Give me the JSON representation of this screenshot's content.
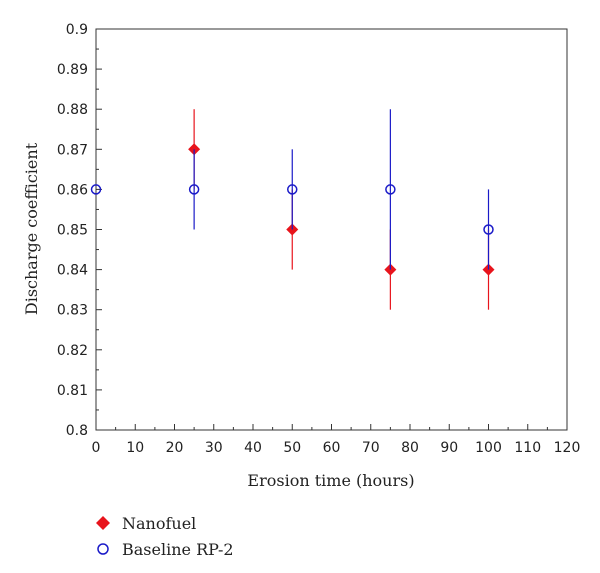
{
  "chart_data": {
    "type": "scatter",
    "xlabel": "Erosion time (hours)",
    "ylabel": "Discharge coefficient",
    "xlim": [
      0,
      120
    ],
    "ylim": [
      0.8,
      0.9
    ],
    "xticks": [
      "0",
      "10",
      "20",
      "30",
      "40",
      "50",
      "60",
      "70",
      "80",
      "90",
      "100",
      "110",
      "120"
    ],
    "yticks": [
      "0.8",
      "0.81",
      "0.82",
      "0.83",
      "0.84",
      "0.85",
      "0.86",
      "0.87",
      "0.88",
      "0.89",
      "0.9"
    ],
    "grid": false,
    "legend_position": "bottom-left",
    "series": [
      {
        "name": "Nanofuel",
        "marker": "diamond",
        "color": "#e8141c",
        "points": [
          {
            "x": 25,
            "y": 0.87,
            "err_low": 0.86,
            "err_high": 0.88
          },
          {
            "x": 50,
            "y": 0.85,
            "err_low": 0.84,
            "err_high": 0.86
          },
          {
            "x": 75,
            "y": 0.84,
            "err_low": 0.83,
            "err_high": 0.85
          },
          {
            "x": 100,
            "y": 0.84,
            "err_low": 0.83,
            "err_high": 0.85
          }
        ]
      },
      {
        "name": "Baseline RP-2",
        "marker": "circle-open",
        "color": "#1a1ac8",
        "points": [
          {
            "x": 0,
            "y": 0.86,
            "err_low": 0.86,
            "err_high": 0.86
          },
          {
            "x": 25,
            "y": 0.86,
            "err_low": 0.85,
            "err_high": 0.87
          },
          {
            "x": 50,
            "y": 0.86,
            "err_low": 0.85,
            "err_high": 0.87
          },
          {
            "x": 75,
            "y": 0.86,
            "err_low": 0.84,
            "err_high": 0.88
          },
          {
            "x": 100,
            "y": 0.85,
            "err_low": 0.84,
            "err_high": 0.86
          }
        ]
      }
    ]
  }
}
